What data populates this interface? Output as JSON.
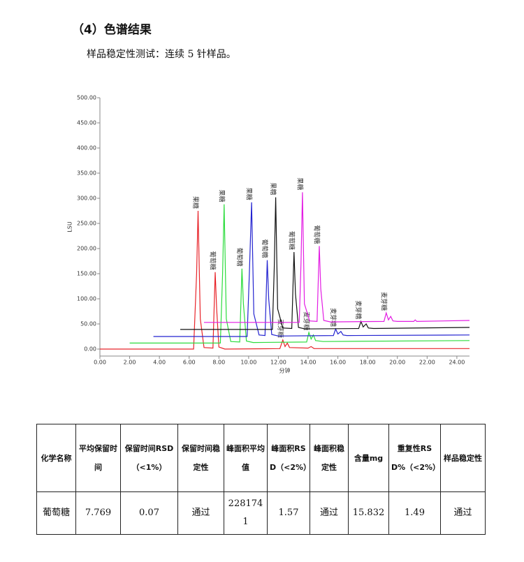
{
  "heading": "（4）色谱结果",
  "intro": "样品稳定性测试：连续 5 针样品。",
  "chart_data": {
    "type": "line",
    "xlabel": "分钟",
    "ylabel": "LSU",
    "xlim": [
      0,
      24.85
    ],
    "ylim": [
      -13.9,
      500
    ],
    "xticks": [
      {
        "value": 0,
        "label": "0.00"
      },
      {
        "value": 2,
        "label": "2.00"
      },
      {
        "value": 4,
        "label": "4.00"
      },
      {
        "value": 6,
        "label": "6.00"
      },
      {
        "value": 8,
        "label": "8.00"
      },
      {
        "value": 10,
        "label": "10.00"
      },
      {
        "value": 12,
        "label": "12.00"
      },
      {
        "value": 14,
        "label": "14.00"
      },
      {
        "value": 16,
        "label": "16.00"
      },
      {
        "value": 18,
        "label": "18.00"
      },
      {
        "value": 20,
        "label": "20.00"
      },
      {
        "value": 22,
        "label": "22.00"
      },
      {
        "value": 24,
        "label": "24.00"
      }
    ],
    "yticks": [
      {
        "value": 0,
        "label": "0.00"
      },
      {
        "value": 50,
        "label": "50.00"
      },
      {
        "value": 100,
        "label": "100.00"
      },
      {
        "value": 150,
        "label": "150.00"
      },
      {
        "value": 200,
        "label": "200.00"
      },
      {
        "value": 250,
        "label": "250.00"
      },
      {
        "value": 300,
        "label": "300.00"
      },
      {
        "value": 350,
        "label": "350.00"
      },
      {
        "value": 400,
        "label": "400.00"
      },
      {
        "value": 450,
        "label": "450.00"
      },
      {
        "value": 500,
        "label": "500.00"
      }
    ],
    "series": [
      {
        "color": "#e8242a",
        "x": [
          0,
          6.3,
          6.5,
          6.6,
          6.75,
          7.0,
          7.6,
          7.75,
          7.85,
          8.0,
          8.4,
          12.1,
          12.3,
          12.45,
          12.6,
          12.75,
          14.0,
          14.2,
          14.4,
          24.85
        ],
        "y": [
          0,
          0,
          150,
          275,
          60,
          3,
          2,
          153,
          80,
          4,
          0,
          1,
          18,
          5,
          12,
          3,
          2,
          5,
          1,
          1
        ],
        "labels": [
          null,
          null,
          null,
          "果糖",
          null,
          null,
          null,
          "葡萄糖",
          null,
          null,
          null,
          null,
          "麦芽糖",
          null,
          null,
          null,
          null,
          null,
          null,
          null
        ]
      },
      {
        "color": "#2ddc3e",
        "x": [
          2.0,
          8.1,
          8.25,
          8.35,
          8.5,
          8.8,
          9.4,
          9.55,
          9.65,
          9.85,
          10.3,
          13.9,
          14.05,
          14.2,
          14.35,
          14.5,
          15.0,
          24.85
        ],
        "y": [
          12,
          12,
          150,
          288,
          60,
          15,
          14,
          160,
          90,
          16,
          13,
          14,
          33,
          20,
          28,
          17,
          15,
          17
        ],
        "labels": [
          null,
          null,
          null,
          "果糖",
          null,
          null,
          null,
          "葡萄糖",
          null,
          null,
          null,
          null,
          "麦芽糖",
          null,
          null,
          null,
          null,
          null
        ]
      },
      {
        "color": "#2323d0",
        "x": [
          3.6,
          9.9,
          10.05,
          10.2,
          10.35,
          10.7,
          11.1,
          11.25,
          11.35,
          11.55,
          12.0,
          15.7,
          15.85,
          16.0,
          16.2,
          16.35,
          16.6,
          24.85
        ],
        "y": [
          25,
          25,
          150,
          292,
          70,
          28,
          27,
          177,
          100,
          29,
          26,
          27,
          40,
          30,
          35,
          28,
          27,
          28
        ],
        "labels": [
          null,
          null,
          null,
          "果糖",
          null,
          null,
          null,
          "葡萄糖",
          null,
          null,
          null,
          null,
          "麦芽糖",
          null,
          null,
          null,
          null,
          null
        ]
      },
      {
        "color": "#111111",
        "x": [
          5.4,
          11.6,
          11.72,
          11.82,
          11.95,
          12.3,
          12.9,
          13.05,
          13.15,
          13.35,
          13.8,
          17.4,
          17.55,
          17.7,
          17.9,
          18.05,
          18.4,
          24.85
        ],
        "y": [
          39,
          39,
          160,
          302,
          80,
          42,
          41,
          193,
          110,
          43,
          40,
          41,
          55,
          44,
          50,
          42,
          41,
          43
        ],
        "labels": [
          null,
          null,
          null,
          "果糖",
          null,
          null,
          null,
          "葡萄糖",
          null,
          null,
          null,
          null,
          "麦芽糖",
          null,
          null,
          null,
          null,
          null
        ]
      },
      {
        "color": "#e31ce3",
        "x": [
          7.0,
          13.4,
          13.52,
          13.62,
          13.75,
          14.1,
          14.6,
          14.75,
          14.85,
          15.05,
          15.5,
          19.1,
          19.25,
          19.4,
          19.55,
          19.7,
          20.0,
          21.1,
          21.2,
          21.3,
          24.85
        ],
        "y": [
          53,
          53,
          170,
          312,
          90,
          56,
          55,
          205,
          120,
          57,
          54,
          55,
          72,
          58,
          65,
          56,
          55,
          55,
          58,
          55,
          57
        ],
        "labels": [
          null,
          null,
          null,
          "果糖",
          null,
          null,
          null,
          "葡萄糖",
          null,
          null,
          null,
          null,
          "麦芽糖",
          null,
          null,
          null,
          null,
          null,
          null,
          null,
          null
        ]
      }
    ]
  },
  "table": {
    "header": [
      "化学名称",
      "平均保留时间",
      "保留时间RSD（<1%）",
      "保留时间稳定性",
      "峰面积平均值",
      "峰面积RSD（<2%）",
      "峰面积稳定性",
      "含量mg",
      "重复性RSD%（<2%）",
      "样品稳定性"
    ],
    "rows": [
      [
        "葡萄糖",
        "7.769",
        "0.07",
        "通过",
        "2281741",
        "1.57",
        "通过",
        "15.832",
        "1.49",
        "通过"
      ]
    ]
  }
}
